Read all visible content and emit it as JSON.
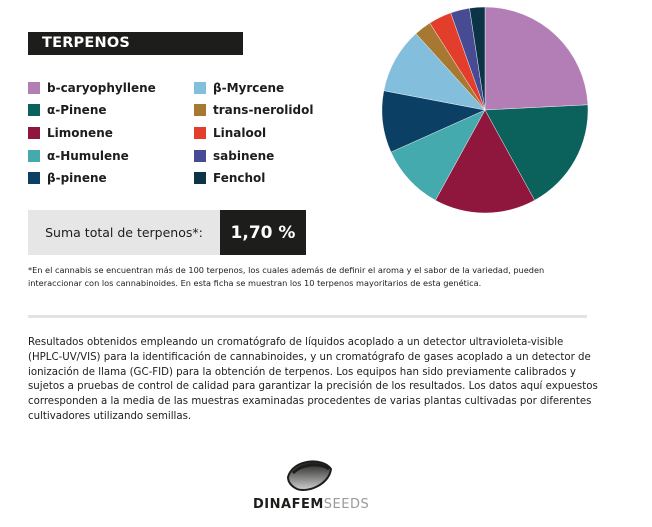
{
  "header": {
    "title": "TERPENOS"
  },
  "legend": {
    "items": [
      {
        "label": "b-caryophyllene",
        "color": "#b37db5"
      },
      {
        "label": "α-Pinene",
        "color": "#0b625c"
      },
      {
        "label": "Limonene",
        "color": "#8f173e"
      },
      {
        "label": "α-Humulene",
        "color": "#45aaad"
      },
      {
        "label": "β-pinene",
        "color": "#0c3f64"
      },
      {
        "label": "β-Myrcene",
        "color": "#83bedc"
      },
      {
        "label": "trans-nerolidol",
        "color": "#a67832"
      },
      {
        "label": "Linalool",
        "color": "#e33d2c"
      },
      {
        "label": "sabinene",
        "color": "#474b94"
      },
      {
        "label": "Fenchol",
        "color": "#0b3447"
      }
    ]
  },
  "total": {
    "label": "Suma total de terpenos*:",
    "value": "1,70 %"
  },
  "footnote": "*En el cannabis se encuentran más de 100 terpenos, los cuales además de definir el aroma y el sabor de la variedad, pueden interaccionar con los cannabinoides. En esta ficha se muestran los 10 terpenos mayoritarios de esta genética.",
  "methods": "Resultados obtenidos empleando un cromatógrafo de líquidos acoplado a un detector ultravioleta-visible (HPLC-UV/VIS) para la identificación de cannabinoides, y un cromatógrafo de gases acoplado a un detector de ionización de llama (GC-FID) para la obtención de terpenos. Los equipos han sido previamente calibrados y sujetos a pruebas de control de calidad para garantizar la precisión de los resultados. Los datos aquí expuestos corresponden a la media de las muestras examinadas procedentes de varias plantas cultivadas por diferentes cultivadores utilizando semillas.",
  "logo": {
    "brand_dark": "DINAFEM",
    "brand_light": "SEEDS"
  },
  "chart_data": {
    "type": "pie",
    "title": "TERPENOS",
    "categories": [
      "b-caryophyllene",
      "α-Pinene",
      "Limonene",
      "α-Humulene",
      "β-pinene",
      "β-Myrcene",
      "trans-nerolidol",
      "Linalool",
      "sabinene",
      "Fenchol"
    ],
    "values": [
      24.2,
      17.8,
      16.0,
      10.3,
      9.7,
      10.3,
      2.7,
      3.6,
      3.0,
      2.4
    ],
    "colors": [
      "#b37db5",
      "#0b625c",
      "#8f173e",
      "#45aaad",
      "#0c3f64",
      "#83bedc",
      "#a67832",
      "#e33d2c",
      "#474b94",
      "#0b3447"
    ],
    "unit": "% of total terpenes (estimated from slice angles)",
    "total": "1,70 %",
    "start_angle_deg": 0,
    "direction": "clockwise",
    "legend_position": "left"
  }
}
